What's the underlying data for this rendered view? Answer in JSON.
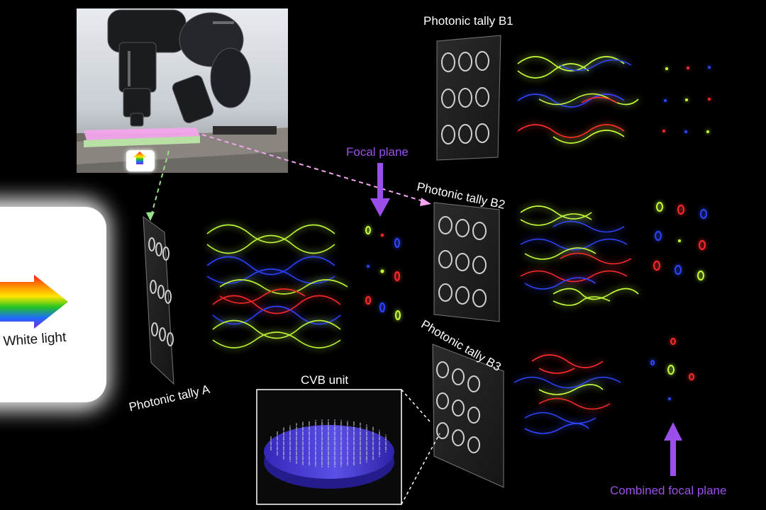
{
  "labels": {
    "tally_b1": "Photonic tally B1",
    "tally_b2": "Photonic tally B2",
    "tally_b3": "Photonic tally B3",
    "tally_a": "Photonic tally A",
    "focal_plane": "Focal plane",
    "combined_focal_plane": "Combined focal plane",
    "cvb_unit": "CVB unit",
    "white_light": "White light"
  },
  "colors": {
    "background": "#000000",
    "focal_arrow": "#9b4fe8",
    "wave_red": "#ff2a2a",
    "wave_green": "#c6ff3a",
    "wave_blue": "#2f44ff",
    "dashed_green": "#9be08a",
    "dashed_pink": "#f2a6f0",
    "cvb_disk": "#4b3fd6"
  }
}
